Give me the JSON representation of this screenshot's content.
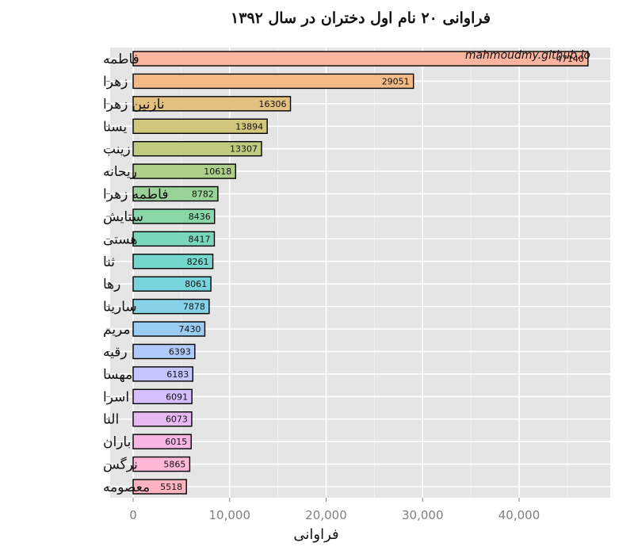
{
  "chart_data": {
    "type": "bar",
    "orientation": "horizontal",
    "title": "فراوانی ۲۰ نام اول دختران در سال ۱۳۹۲",
    "xlabel": "فراوانی",
    "ylabel": "",
    "watermark": "mahmoudmy.github.io",
    "xlim": [
      0,
      49000
    ],
    "x_ticks": [
      0,
      10000,
      20000,
      30000,
      40000
    ],
    "x_tick_labels": [
      "0",
      "10,000",
      "20,000",
      "30,000",
      "40,000"
    ],
    "grid": true,
    "legend": "none",
    "categories": [
      "معصومه",
      "نرگس",
      "باران",
      "النا",
      "اسرا",
      "مهسا",
      "رقیه",
      "مریم",
      "سارینا",
      "رها",
      "ثنا",
      "هستی",
      "ستایش",
      "فاطمه زهرا",
      "ریحانه",
      "زینب",
      "یسنا",
      "نازنین زهرا",
      "زهرا",
      "فاطمه"
    ],
    "values": [
      5518,
      5865,
      6015,
      6073,
      6091,
      6183,
      6393,
      7430,
      7878,
      8061,
      8261,
      8417,
      8436,
      8782,
      10618,
      13307,
      13894,
      16306,
      29051,
      47140
    ],
    "value_labels": [
      "5518",
      "5865",
      "6015",
      "6073",
      "6091",
      "6183",
      "6393",
      "7430",
      "7878",
      "8061",
      "8261",
      "8417",
      "8436",
      "8782",
      "10618",
      "13307",
      "13894",
      "16306",
      "29051",
      "47140"
    ],
    "colors": [
      "#ffb3c0",
      "#ffb7d7",
      "#f7b5e6",
      "#e7b9f3",
      "#d6befc",
      "#c4c4fe",
      "#afc9fb",
      "#99cdf3",
      "#86d1e8",
      "#78d4db",
      "#74d6cc",
      "#7bd7bb",
      "#89d6a9",
      "#9ad398",
      "#adcf8a",
      "#c0cb80",
      "#d2c67c",
      "#e2c07e",
      "#f1ba86",
      "#fbb4a0"
    ],
    "panel_background": "#e5e5e5",
    "grid_color": "#ffffff",
    "bar_outline": "#000000"
  }
}
